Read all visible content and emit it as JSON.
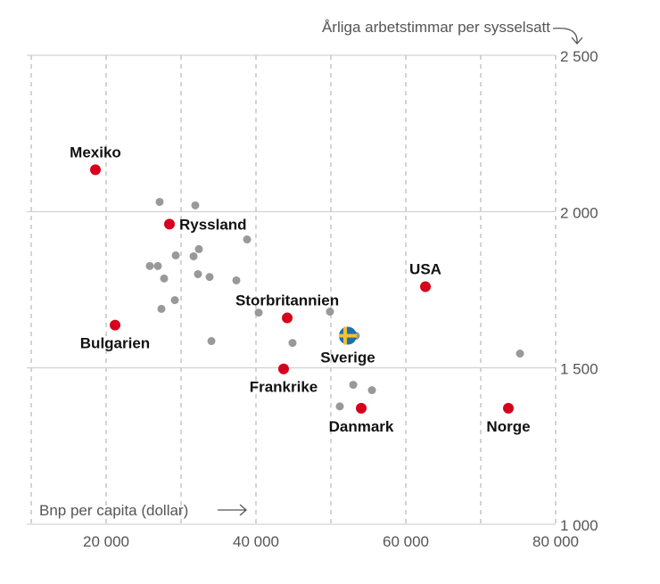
{
  "chart_data": {
    "type": "scatter",
    "title": "",
    "xlabel": "Bnp per capita (dollar)",
    "ylabel": "Årliga arbetstimmar per sysselsatt",
    "xlim": [
      10000,
      80000
    ],
    "ylim": [
      1000,
      2500
    ],
    "xticks": [
      20000,
      40000,
      60000,
      80000
    ],
    "xtick_labels": [
      "20 000",
      "40 000",
      "60 000",
      "80 000"
    ],
    "xgrid": [
      10000,
      20000,
      30000,
      40000,
      50000,
      60000,
      70000,
      80000
    ],
    "yticks": [
      1000,
      1500,
      2000,
      2500
    ],
    "ytick_labels": [
      "1 000",
      "1 500",
      "2 000",
      "2 500"
    ],
    "grid": true,
    "colors": {
      "highlight": "#d6001c",
      "other": "#999999",
      "sweden_blue": "#1f6fae",
      "sweden_yellow": "#f2c230"
    },
    "highlighted": [
      {
        "name": "Mexiko",
        "x": 18570,
        "y": 2134,
        "label_pos": "above"
      },
      {
        "name": "Ryssland",
        "x": 28450,
        "y": 1960,
        "label_pos": "right"
      },
      {
        "name": "Bulgarien",
        "x": 21190,
        "y": 1637,
        "label_pos": "below"
      },
      {
        "name": "Storbritannien",
        "x": 44170,
        "y": 1660,
        "label_pos": "above"
      },
      {
        "name": "Frankrike",
        "x": 43690,
        "y": 1497,
        "label_pos": "below"
      },
      {
        "name": "Sverige",
        "x": 52260,
        "y": 1603,
        "label_pos": "below",
        "flag": true
      },
      {
        "name": "USA",
        "x": 62620,
        "y": 1760,
        "label_pos": "above"
      },
      {
        "name": "Danmark",
        "x": 54050,
        "y": 1371,
        "label_pos": "below"
      },
      {
        "name": "Norge",
        "x": 73690,
        "y": 1371,
        "label_pos": "below"
      }
    ],
    "others": [
      {
        "x": 27140,
        "y": 2031
      },
      {
        "x": 31900,
        "y": 2020
      },
      {
        "x": 38810,
        "y": 1911
      },
      {
        "x": 29290,
        "y": 1860
      },
      {
        "x": 32380,
        "y": 1880
      },
      {
        "x": 31670,
        "y": 1857
      },
      {
        "x": 25830,
        "y": 1826
      },
      {
        "x": 26900,
        "y": 1826
      },
      {
        "x": 27740,
        "y": 1786
      },
      {
        "x": 32260,
        "y": 1800
      },
      {
        "x": 33810,
        "y": 1791
      },
      {
        "x": 37380,
        "y": 1780
      },
      {
        "x": 29170,
        "y": 1717
      },
      {
        "x": 27380,
        "y": 1689
      },
      {
        "x": 40360,
        "y": 1677
      },
      {
        "x": 49880,
        "y": 1680
      },
      {
        "x": 34050,
        "y": 1586
      },
      {
        "x": 44880,
        "y": 1580
      },
      {
        "x": 53330,
        "y": 1603
      },
      {
        "x": 75240,
        "y": 1546
      },
      {
        "x": 52980,
        "y": 1446
      },
      {
        "x": 55480,
        "y": 1429
      },
      {
        "x": 51190,
        "y": 1377
      }
    ]
  }
}
